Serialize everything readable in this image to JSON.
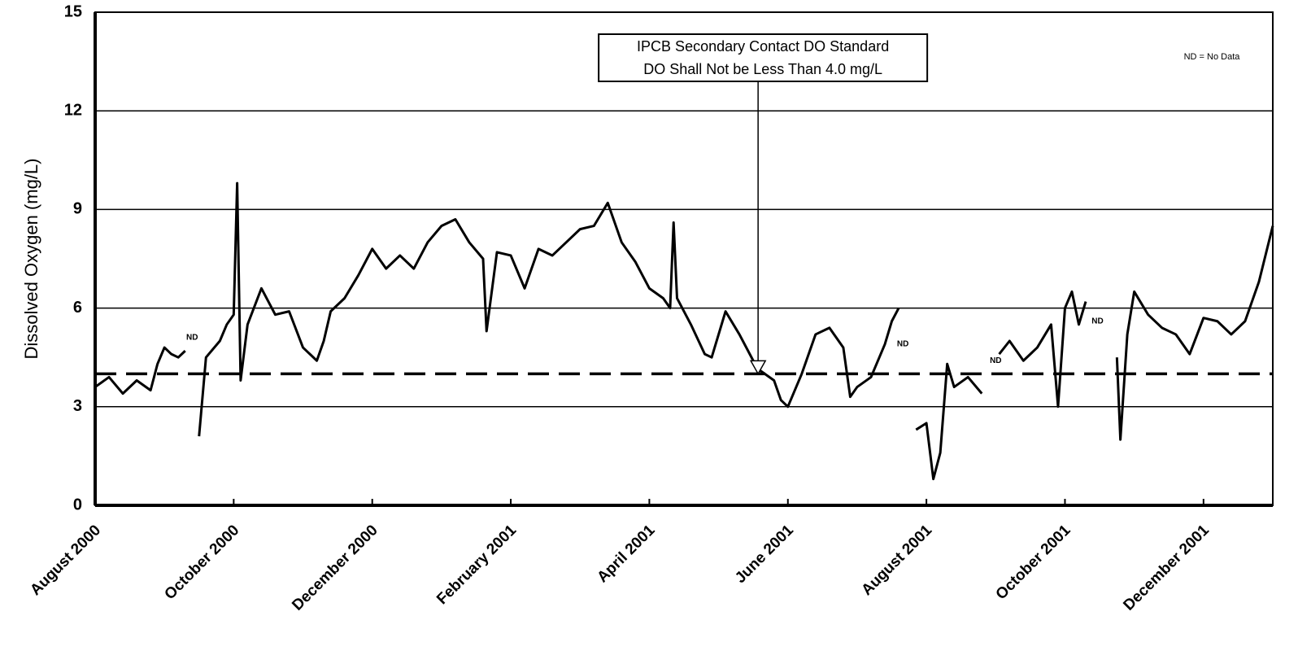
{
  "chart_data": {
    "type": "line",
    "y_label": "Dissolved Oxygen (mg/L)",
    "xlim": [
      0,
      17
    ],
    "xticks": [
      {
        "value": 0,
        "label": "August 2000"
      },
      {
        "value": 2,
        "label": "October 2000"
      },
      {
        "value": 4,
        "label": "December 2000"
      },
      {
        "value": 6,
        "label": "February 2001"
      },
      {
        "value": 8,
        "label": "April 2001"
      },
      {
        "value": 10,
        "label": "June 2001"
      },
      {
        "value": 12,
        "label": "August 2001"
      },
      {
        "value": 14,
        "label": "October 2001"
      },
      {
        "value": 16,
        "label": "December 2001"
      }
    ],
    "ylim": [
      0,
      15
    ],
    "yticks": [
      0,
      3,
      6,
      9,
      12,
      15
    ],
    "grid": true,
    "standard": 4.0,
    "annotation": {
      "lines": [
        "IPCB Secondary Contact DO Standard",
        "DO Shall Not be Less Than 4.0 mg/L"
      ],
      "x": 9.57,
      "y": 4.0
    },
    "note": "ND = No Data",
    "nd_labels": [
      {
        "text": "ND",
        "x": 1.4,
        "y": 5.1
      },
      {
        "text": "ND",
        "x": 11.66,
        "y": 4.9
      },
      {
        "text": "ND",
        "x": 13.0,
        "y": 4.4
      },
      {
        "text": "ND",
        "x": 14.47,
        "y": 5.6
      }
    ],
    "series": [
      {
        "color": "#000000",
        "x": [
          0,
          0.2,
          0.4,
          0.6,
          0.8,
          0.9,
          1.0,
          1.1,
          1.2,
          1.3,
          1.4,
          1.5,
          1.6,
          1.8,
          1.9,
          2.0,
          2.05,
          2.1,
          2.2,
          2.4,
          2.6,
          2.8,
          3.0,
          3.2,
          3.3,
          3.4,
          3.6,
          3.8,
          4.0,
          4.2,
          4.4,
          4.6,
          4.8,
          5.0,
          5.2,
          5.4,
          5.6,
          5.65,
          5.8,
          6.0,
          6.2,
          6.4,
          6.6,
          6.8,
          7.0,
          7.2,
          7.4,
          7.6,
          7.8,
          8.0,
          8.2,
          8.3,
          8.35,
          8.4,
          8.6,
          8.8,
          8.9,
          9.0,
          9.1,
          9.3,
          9.5,
          9.6,
          9.8,
          9.9,
          10.0,
          10.2,
          10.4,
          10.6,
          10.8,
          10.9,
          11.0,
          11.2,
          11.4,
          11.5,
          11.6,
          11.7,
          11.85,
          12.0,
          12.1,
          12.2,
          12.3,
          12.4,
          12.6,
          12.8,
          12.9,
          13.05,
          13.2,
          13.4,
          13.6,
          13.8,
          13.9,
          14.0,
          14.1,
          14.2,
          14.3,
          14.5,
          14.75,
          14.8,
          14.9,
          15.0,
          15.2,
          15.4,
          15.6,
          15.8,
          16.0,
          16.2,
          16.4,
          16.6,
          16.8,
          17.0
        ],
        "values": [
          3.6,
          3.9,
          3.4,
          3.8,
          3.5,
          4.3,
          4.8,
          4.6,
          4.5,
          4.7,
          null,
          2.1,
          4.5,
          5.0,
          5.5,
          5.8,
          9.8,
          3.8,
          5.5,
          6.6,
          5.8,
          5.9,
          4.8,
          4.4,
          5.0,
          5.9,
          6.3,
          7.0,
          7.8,
          7.2,
          7.6,
          7.2,
          8.0,
          8.5,
          8.7,
          8.0,
          7.5,
          5.3,
          7.7,
          7.6,
          6.6,
          7.8,
          7.6,
          8.0,
          8.4,
          8.5,
          9.2,
          8.0,
          7.4,
          6.6,
          6.3,
          6.0,
          8.6,
          6.3,
          5.5,
          4.6,
          4.5,
          5.2,
          5.9,
          5.2,
          4.4,
          4.1,
          3.8,
          3.2,
          3.0,
          4.0,
          5.2,
          5.4,
          4.8,
          3.3,
          3.6,
          3.9,
          4.9,
          5.6,
          6.0,
          null,
          2.3,
          2.5,
          0.8,
          1.6,
          4.3,
          3.6,
          3.9,
          3.4,
          null,
          4.6,
          5.0,
          4.4,
          4.8,
          5.5,
          3.0,
          6.0,
          6.5,
          5.5,
          6.2,
          null,
          4.5,
          2.0,
          5.2,
          6.5,
          5.8,
          5.4,
          5.2,
          4.6,
          5.7,
          5.6,
          5.2,
          5.6,
          6.8,
          8.5
        ]
      }
    ]
  }
}
